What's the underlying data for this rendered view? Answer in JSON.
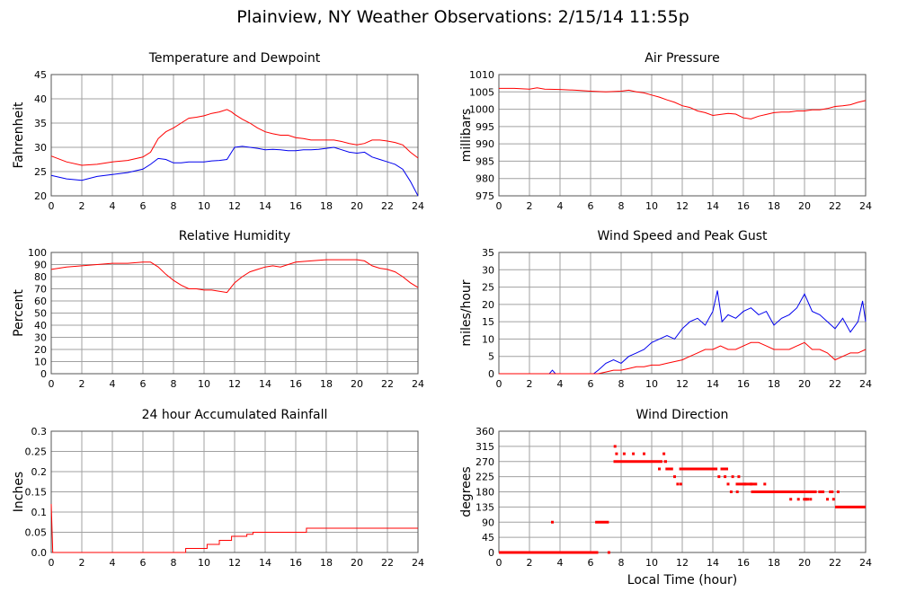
{
  "title": "Plainview, NY Weather Observations: 2/15/14 11:55p",
  "colors": {
    "red": "#ff0000",
    "blue": "#0000ee",
    "grid": "#a0a0a0"
  },
  "chart_data": [
    {
      "id": "temp",
      "type": "line",
      "title": "Temperature and Dewpoint",
      "xlabel": "",
      "ylabel": "Fahrenheit",
      "xlim": [
        0,
        24
      ],
      "ylim": [
        20,
        45
      ],
      "xticks": [
        "0",
        "2",
        "4",
        "6",
        "8",
        "10",
        "12",
        "14",
        "16",
        "18",
        "20",
        "22",
        "24"
      ],
      "yticks": [
        "20",
        "25",
        "30",
        "35",
        "40",
        "45"
      ],
      "grid": true,
      "series": [
        {
          "color": "#ff0000",
          "x": [
            0,
            1,
            2,
            3,
            4,
            5,
            6,
            6.5,
            7,
            7.5,
            8,
            8.5,
            9,
            9.5,
            10,
            10.5,
            11,
            11.5,
            11.8,
            12,
            12.5,
            13,
            13.5,
            14,
            14.5,
            15,
            15.5,
            16,
            16.5,
            17,
            17.5,
            18,
            18.5,
            19,
            19.5,
            20,
            20.5,
            21,
            21.5,
            22,
            22.5,
            23,
            23.5,
            24
          ],
          "y": [
            28.2,
            27,
            26.3,
            26.5,
            27,
            27.3,
            28,
            29,
            31.8,
            33.2,
            34,
            35,
            36,
            36.2,
            36.5,
            37,
            37.3,
            37.8,
            37.3,
            36.8,
            35.8,
            35,
            34,
            33.2,
            32.8,
            32.5,
            32.5,
            32,
            31.8,
            31.5,
            31.5,
            31.5,
            31.5,
            31.2,
            30.8,
            30.5,
            30.8,
            31.5,
            31.5,
            31.3,
            31,
            30.5,
            29,
            27.8
          ]
        },
        {
          "color": "#0000ee",
          "x": [
            0,
            1,
            2,
            3,
            4,
            5,
            6,
            6.5,
            7,
            7.5,
            8,
            8.5,
            9,
            9.5,
            10,
            10.5,
            11,
            11.5,
            12,
            12.5,
            13,
            13.5,
            14,
            14.5,
            15,
            15.5,
            16,
            16.5,
            17,
            17.5,
            18,
            18.5,
            19,
            19.5,
            20,
            20.5,
            21,
            21.5,
            22,
            22.5,
            23,
            23.5,
            24
          ],
          "y": [
            24.2,
            23.5,
            23.2,
            24,
            24.4,
            24.8,
            25.5,
            26.5,
            27.7,
            27.5,
            26.8,
            26.8,
            27,
            27,
            27,
            27.2,
            27.3,
            27.5,
            30,
            30.2,
            30,
            29.8,
            29.5,
            29.6,
            29.5,
            29.3,
            29.3,
            29.5,
            29.5,
            29.6,
            29.8,
            30,
            29.5,
            29,
            28.8,
            29,
            28,
            27.5,
            27,
            26.5,
            25.5,
            23,
            20
          ]
        }
      ]
    },
    {
      "id": "pressure",
      "type": "line",
      "title": "Air Pressure",
      "xlabel": "",
      "ylabel": "millibars",
      "xlim": [
        0,
        24
      ],
      "ylim": [
        975,
        1010
      ],
      "xticks": [
        "0",
        "2",
        "4",
        "6",
        "8",
        "10",
        "12",
        "14",
        "16",
        "18",
        "20",
        "22",
        "24"
      ],
      "yticks": [
        "975",
        "980",
        "985",
        "990",
        "995",
        "1000",
        "1005",
        "1010"
      ],
      "grid": true,
      "series": [
        {
          "color": "#ff0000",
          "x": [
            0,
            1,
            2,
            2.5,
            3,
            4,
            5,
            6,
            7,
            8,
            8.5,
            9,
            9.5,
            10,
            10.5,
            11,
            11.5,
            12,
            12.5,
            13,
            13.5,
            14,
            14.5,
            15,
            15.5,
            16,
            16.5,
            17,
            17.5,
            18,
            18.5,
            19,
            19.5,
            20,
            20.5,
            21,
            21.5,
            22,
            22.5,
            23,
            23.5,
            24
          ],
          "y": [
            1006,
            1006,
            1005.8,
            1006.2,
            1005.8,
            1005.7,
            1005.5,
            1005.2,
            1005,
            1005.2,
            1005.5,
            1005,
            1004.7,
            1004.1,
            1003.5,
            1002.7,
            1002,
            1001,
            1000.5,
            999.5,
            999,
            998.2,
            998.5,
            998.8,
            998.6,
            997.5,
            997.2,
            998,
            998.5,
            999,
            999.2,
            999.2,
            999.5,
            999.5,
            999.8,
            999.8,
            1000.2,
            1000.8,
            1001,
            1001.3,
            1002,
            1002.5
          ]
        }
      ]
    },
    {
      "id": "humidity",
      "type": "line",
      "title": "Relative Humidity",
      "xlabel": "",
      "ylabel": "Percent",
      "xlim": [
        0,
        24
      ],
      "ylim": [
        0,
        100
      ],
      "xticks": [
        "0",
        "2",
        "4",
        "6",
        "8",
        "10",
        "12",
        "14",
        "16",
        "18",
        "20",
        "22",
        "24"
      ],
      "yticks": [
        "0",
        "10",
        "20",
        "30",
        "40",
        "50",
        "60",
        "70",
        "80",
        "90",
        "100"
      ],
      "grid": true,
      "series": [
        {
          "color": "#ff0000",
          "x": [
            0,
            1,
            2,
            3,
            4,
            5,
            6,
            6.5,
            7,
            7.5,
            8,
            8.5,
            9,
            9.5,
            10,
            10.5,
            11,
            11.5,
            12,
            12.5,
            13,
            13.5,
            14,
            14.5,
            15,
            15.5,
            16,
            17,
            18,
            19,
            20,
            20.5,
            21,
            21.5,
            22,
            22.5,
            23,
            23.5,
            24
          ],
          "y": [
            86,
            88,
            89,
            90,
            91,
            91,
            92,
            92,
            88,
            82,
            77,
            73,
            70,
            70,
            69,
            69,
            68,
            67,
            75,
            80,
            84,
            86,
            88,
            89,
            88,
            90,
            92,
            93,
            94,
            94,
            94,
            93,
            89,
            87,
            86,
            84,
            80,
            75,
            71
          ]
        }
      ]
    },
    {
      "id": "wind",
      "type": "line",
      "title": "Wind Speed and Peak Gust",
      "xlabel": "",
      "ylabel": "miles/hour",
      "xlim": [
        0,
        24
      ],
      "ylim": [
        0,
        35
      ],
      "xticks": [
        "0",
        "2",
        "4",
        "6",
        "8",
        "10",
        "12",
        "14",
        "16",
        "18",
        "20",
        "22",
        "24"
      ],
      "yticks": [
        "0",
        "5",
        "10",
        "15",
        "20",
        "25",
        "30",
        "35"
      ],
      "grid": true,
      "series": [
        {
          "color": "#0000ee",
          "x": [
            0,
            3.3,
            3.5,
            3.7,
            6.2,
            6.5,
            7,
            7.5,
            8,
            8.5,
            9,
            9.5,
            10,
            10.5,
            11,
            11.5,
            12,
            12.5,
            13,
            13.5,
            14,
            14.3,
            14.6,
            15,
            15.5,
            16,
            16.5,
            17,
            17.5,
            18,
            18.5,
            19,
            19.5,
            20,
            20.5,
            21,
            21.5,
            22,
            22.5,
            23,
            23.5,
            23.8,
            24
          ],
          "y": [
            0,
            0,
            1,
            0,
            0,
            1,
            3,
            4,
            3,
            5,
            6,
            7,
            9,
            10,
            11,
            10,
            13,
            15,
            16,
            14,
            18,
            24,
            15,
            17,
            16,
            18,
            19,
            17,
            18,
            14,
            16,
            17,
            19,
            23,
            18,
            17,
            15,
            13,
            16,
            12,
            15,
            21,
            15
          ]
        },
        {
          "color": "#ff0000",
          "x": [
            0,
            6.5,
            7,
            7.5,
            8,
            8.5,
            9,
            9.5,
            10,
            10.5,
            11,
            11.5,
            12,
            12.5,
            13,
            13.5,
            14,
            14.5,
            15,
            15.5,
            16,
            16.5,
            17,
            17.5,
            18,
            18.5,
            19,
            19.5,
            20,
            20.5,
            21,
            21.5,
            22,
            22.5,
            23,
            23.5,
            24
          ],
          "y": [
            0,
            0,
            0.5,
            1,
            1,
            1.5,
            2,
            2,
            2.5,
            2.5,
            3,
            3.5,
            4,
            5,
            6,
            7,
            7,
            8,
            7,
            7,
            8,
            9,
            9,
            8,
            7,
            7,
            7,
            8,
            9,
            7,
            7,
            6,
            4,
            5,
            6,
            6,
            7
          ]
        }
      ]
    },
    {
      "id": "rain",
      "type": "line",
      "title": "24 hour Accumulated Rainfall",
      "xlabel": "",
      "ylabel": "Inches",
      "xlim": [
        0,
        24
      ],
      "ylim": [
        0,
        0.3
      ],
      "xticks": [
        "0",
        "2",
        "4",
        "6",
        "8",
        "10",
        "12",
        "14",
        "16",
        "18",
        "20",
        "22",
        "24"
      ],
      "yticks": [
        "0.0",
        "0.05",
        "0.1",
        "0.15",
        "0.2",
        "0.25",
        "0.3"
      ],
      "grid": true,
      "series": [
        {
          "color": "#ff0000",
          "x": [
            0,
            0.1,
            8.8,
            8.8,
            10.2,
            10.2,
            11,
            11,
            11.8,
            11.8,
            12.8,
            12.8,
            13.2,
            13.2,
            16.7,
            16.7,
            24
          ],
          "y": [
            0.12,
            0,
            0,
            0.01,
            0.01,
            0.02,
            0.02,
            0.03,
            0.03,
            0.04,
            0.04,
            0.045,
            0.045,
            0.05,
            0.05,
            0.06,
            0.06
          ]
        }
      ]
    },
    {
      "id": "direction",
      "type": "scatter",
      "title": "Wind Direction",
      "xlabel": "Local Time (hour)",
      "ylabel": "degrees",
      "xlim": [
        0,
        24
      ],
      "ylim": [
        0,
        360
      ],
      "xticks": [
        "0",
        "2",
        "4",
        "6",
        "8",
        "10",
        "12",
        "14",
        "16",
        "18",
        "20",
        "22",
        "24"
      ],
      "yticks": [
        "0",
        "45",
        "90",
        "135",
        "180",
        "225",
        "270",
        "315",
        "360"
      ],
      "grid": true,
      "series": [
        {
          "color": "#ff0000",
          "points": [
            [
              3.5,
              90
            ],
            [
              7.6,
              315
            ],
            [
              7.7,
              293
            ],
            [
              8.2,
              293
            ],
            [
              8.8,
              293
            ],
            [
              9.5,
              293
            ],
            [
              10.8,
              293
            ],
            [
              10.5,
              248
            ],
            [
              11.5,
              225
            ],
            [
              11.7,
              203
            ],
            [
              11.9,
              203
            ],
            [
              14.4,
              225
            ],
            [
              14.8,
              225
            ],
            [
              15,
              203
            ],
            [
              15.2,
              180
            ],
            [
              15.6,
              180
            ],
            [
              15.3,
              225
            ],
            [
              15.7,
              225
            ],
            [
              16.1,
              203
            ],
            [
              16.5,
              203
            ],
            [
              17.4,
              203
            ],
            [
              19.1,
              158
            ],
            [
              19.6,
              158
            ],
            [
              20.1,
              158
            ],
            [
              20.4,
              158
            ],
            [
              21.5,
              158
            ],
            [
              22.2,
              180
            ],
            [
              21.9,
              158
            ],
            [
              7.2,
              0
            ]
          ],
          "segments": [
            [
              [
                0,
                0
              ],
              [
                6.5,
                0
              ]
            ],
            [
              [
                6.3,
                90
              ],
              [
                7.2,
                90
              ]
            ],
            [
              [
                7.5,
                270
              ],
              [
                10.7,
                270
              ]
            ],
            [
              [
                10.8,
                270
              ],
              [
                11,
                270
              ]
            ],
            [
              [
                10.9,
                248
              ],
              [
                11.4,
                248
              ]
            ],
            [
              [
                11.8,
                248
              ],
              [
                14.3,
                248
              ]
            ],
            [
              [
                14.5,
                248
              ],
              [
                15,
                248
              ]
            ],
            [
              [
                15.5,
                203
              ],
              [
                16.9,
                203
              ]
            ],
            [
              [
                16.5,
                180
              ],
              [
                20.8,
                180
              ]
            ],
            [
              [
                20.9,
                180
              ],
              [
                21.3,
                180
              ]
            ],
            [
              [
                19.9,
                158
              ],
              [
                20.3,
                158
              ]
            ],
            [
              [
                21.6,
                180
              ],
              [
                21.9,
                180
              ]
            ],
            [
              [
                22,
                135
              ],
              [
                24,
                135
              ]
            ]
          ]
        }
      ]
    }
  ]
}
